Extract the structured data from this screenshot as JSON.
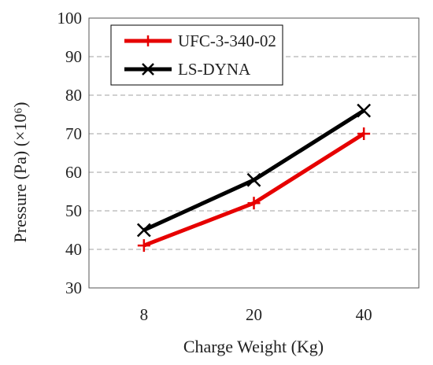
{
  "chart_data": {
    "type": "line",
    "categories": [
      "8",
      "20",
      "40"
    ],
    "series": [
      {
        "name": "UFC-3-340-02",
        "values": [
          41,
          52,
          70
        ],
        "color": "#e60000",
        "marker": "plus"
      },
      {
        "name": "LS-DYNA",
        "values": [
          45,
          58,
          76
        ],
        "color": "#000000",
        "marker": "x"
      }
    ],
    "xlabel": "Charge Weight (Kg)",
    "ylabel": "Pressure (Pa) (×10⁶)",
    "ylim": [
      30,
      100
    ],
    "yticks": [
      "30",
      "40",
      "50",
      "60",
      "70",
      "80",
      "90",
      "100"
    ],
    "grid": "horizontal-dashed",
    "legend_position": "top-left"
  }
}
